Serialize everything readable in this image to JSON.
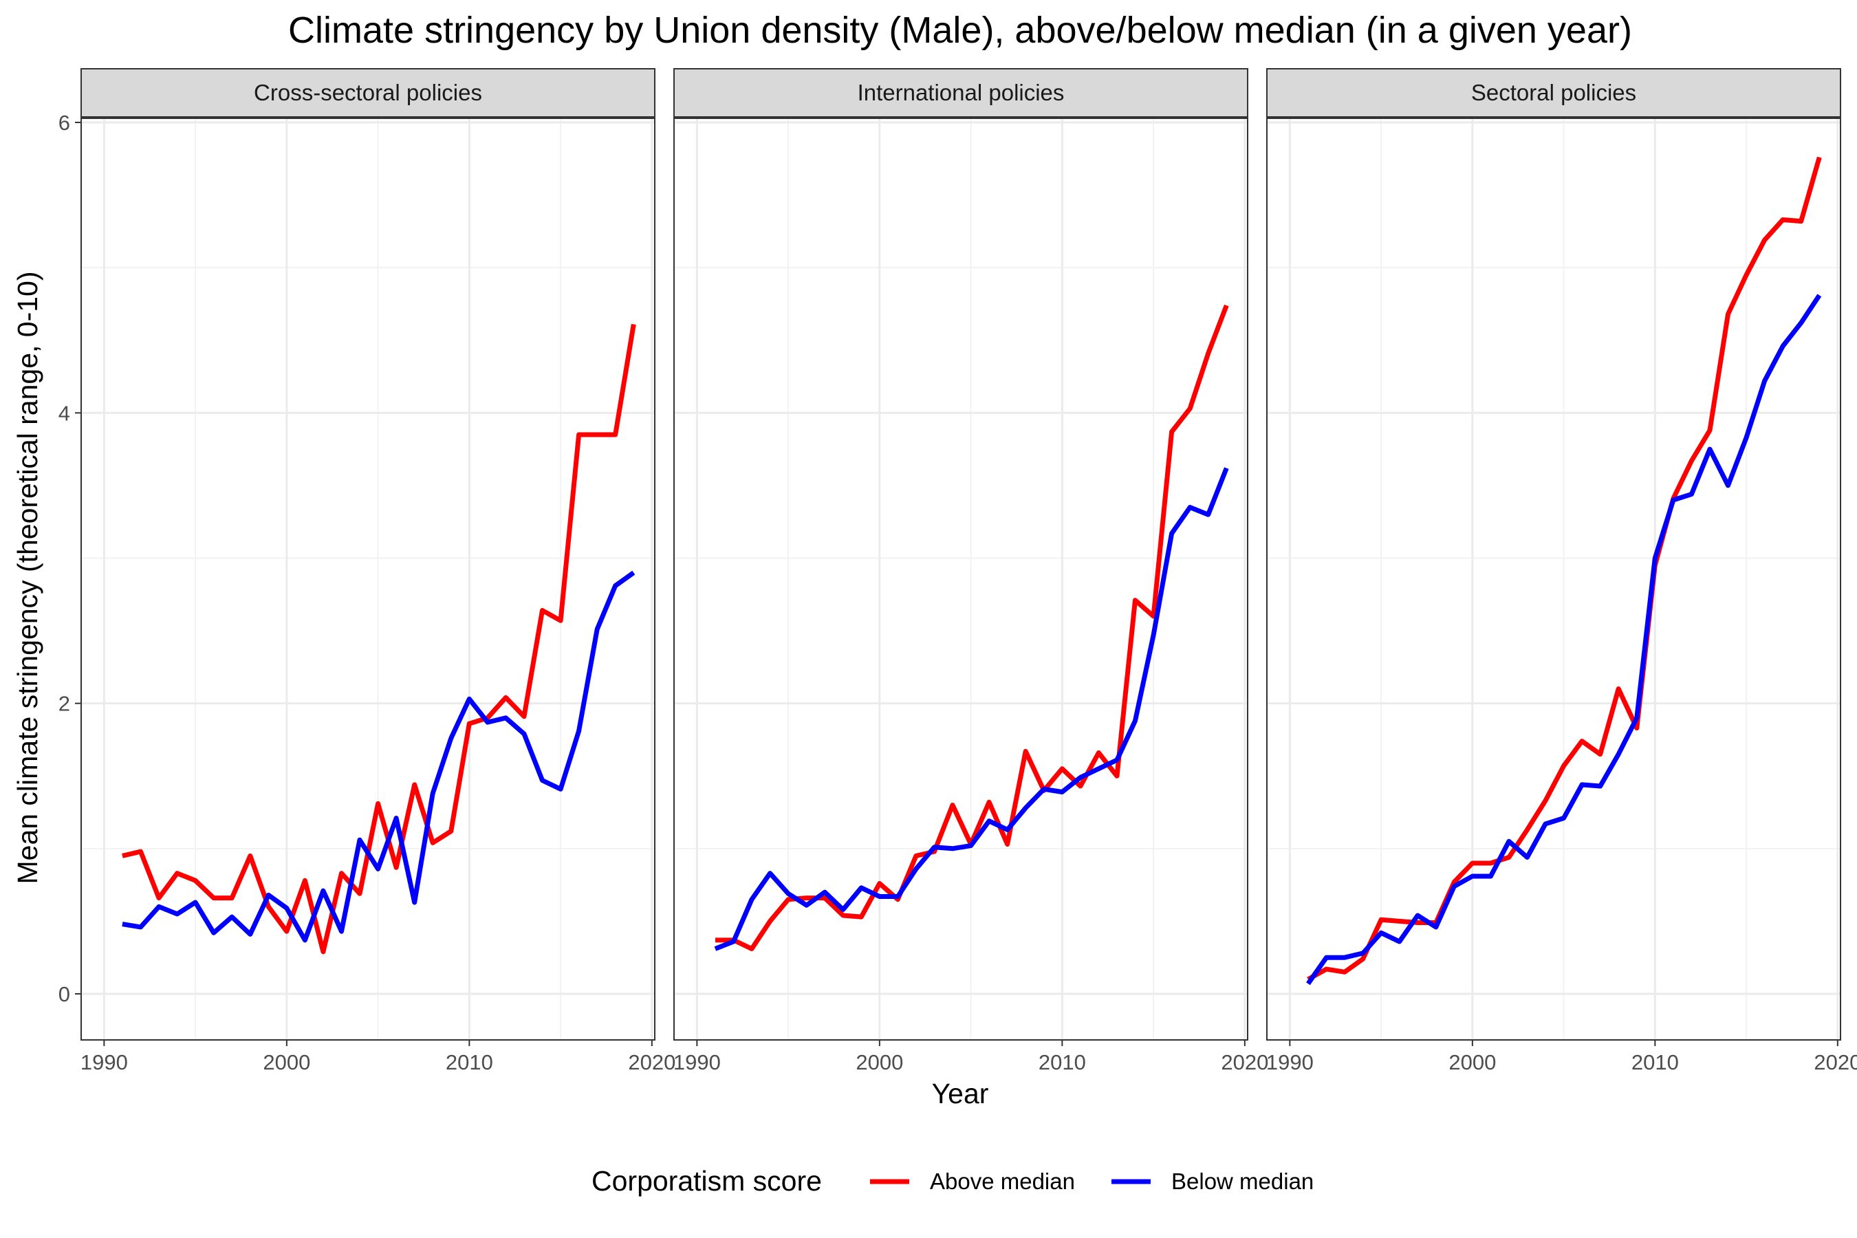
{
  "chart_data": {
    "type": "line",
    "title": "Climate stringency by Union density (Male), above/below median (in a given year)",
    "xlabel": "Year",
    "ylabel": "Mean climate stringency (theoretical range, 0-10)",
    "xlim": [
      1990,
      2020
    ],
    "ylim": [
      0,
      6
    ],
    "x_ticks": [
      1990,
      2000,
      2010,
      2020
    ],
    "y_ticks": [
      0,
      2,
      4,
      6
    ],
    "grid": true,
    "legend": {
      "title": "Corporatism score",
      "position": "bottom",
      "entries": [
        {
          "label": "Above median",
          "color": "#ff0000"
        },
        {
          "label": "Below median",
          "color": "#0000ff"
        }
      ]
    },
    "x": [
      1991,
      1992,
      1993,
      1994,
      1995,
      1996,
      1997,
      1998,
      1999,
      2000,
      2001,
      2002,
      2003,
      2004,
      2005,
      2006,
      2007,
      2008,
      2009,
      2010,
      2011,
      2012,
      2013,
      2014,
      2015,
      2016,
      2017,
      2018,
      2019
    ],
    "panels": [
      {
        "label": "Cross-sectoral policies",
        "series": [
          {
            "name": "Above median",
            "color": "#ff0000",
            "values": [
              0.95,
              0.98,
              0.66,
              0.83,
              0.78,
              0.66,
              0.66,
              0.95,
              0.6,
              0.43,
              0.78,
              0.29,
              0.83,
              0.69,
              1.31,
              0.87,
              1.44,
              1.04,
              1.12,
              1.86,
              1.9,
              2.04,
              1.91,
              2.64,
              2.57,
              3.85,
              3.85,
              3.85,
              4.61
            ]
          },
          {
            "name": "Below median",
            "color": "#0000ff",
            "values": [
              0.48,
              0.46,
              0.6,
              0.55,
              0.63,
              0.42,
              0.53,
              0.41,
              0.68,
              0.59,
              0.37,
              0.71,
              0.43,
              1.06,
              0.86,
              1.21,
              0.63,
              1.38,
              1.76,
              2.03,
              1.87,
              1.9,
              1.79,
              1.47,
              1.41,
              1.81,
              2.51,
              2.81,
              2.9
            ]
          }
        ]
      },
      {
        "label": "International policies",
        "series": [
          {
            "name": "Above median",
            "color": "#ff0000",
            "values": [
              0.37,
              0.37,
              0.31,
              0.5,
              0.65,
              0.66,
              0.66,
              0.54,
              0.53,
              0.76,
              0.65,
              0.95,
              0.98,
              1.3,
              1.03,
              1.32,
              1.03,
              1.67,
              1.4,
              1.55,
              1.43,
              1.66,
              1.5,
              2.71,
              2.6,
              3.87,
              4.03,
              4.41,
              4.74
            ]
          },
          {
            "name": "Below median",
            "color": "#0000ff",
            "values": [
              0.31,
              0.36,
              0.65,
              0.83,
              0.69,
              0.61,
              0.7,
              0.58,
              0.73,
              0.67,
              0.67,
              0.86,
              1.01,
              1.0,
              1.02,
              1.19,
              1.13,
              1.28,
              1.41,
              1.39,
              1.49,
              1.55,
              1.61,
              1.88,
              2.47,
              3.17,
              3.35,
              3.3,
              3.62
            ]
          }
        ]
      },
      {
        "label": "Sectoral policies",
        "series": [
          {
            "name": "Above median",
            "color": "#ff0000",
            "values": [
              0.1,
              0.17,
              0.15,
              0.24,
              0.51,
              0.5,
              0.49,
              0.49,
              0.77,
              0.9,
              0.9,
              0.94,
              1.13,
              1.33,
              1.57,
              1.74,
              1.65,
              2.1,
              1.83,
              2.95,
              3.41,
              3.67,
              3.88,
              4.68,
              4.95,
              5.19,
              5.33,
              5.32,
              5.76
            ]
          },
          {
            "name": "Below median",
            "color": "#0000ff",
            "values": [
              0.07,
              0.25,
              0.25,
              0.28,
              0.42,
              0.36,
              0.54,
              0.46,
              0.74,
              0.81,
              0.81,
              1.05,
              0.94,
              1.17,
              1.21,
              1.44,
              1.43,
              1.65,
              1.9,
              3.0,
              3.4,
              3.44,
              3.75,
              3.5,
              3.83,
              4.22,
              4.46,
              4.62,
              4.81
            ]
          }
        ]
      }
    ]
  }
}
